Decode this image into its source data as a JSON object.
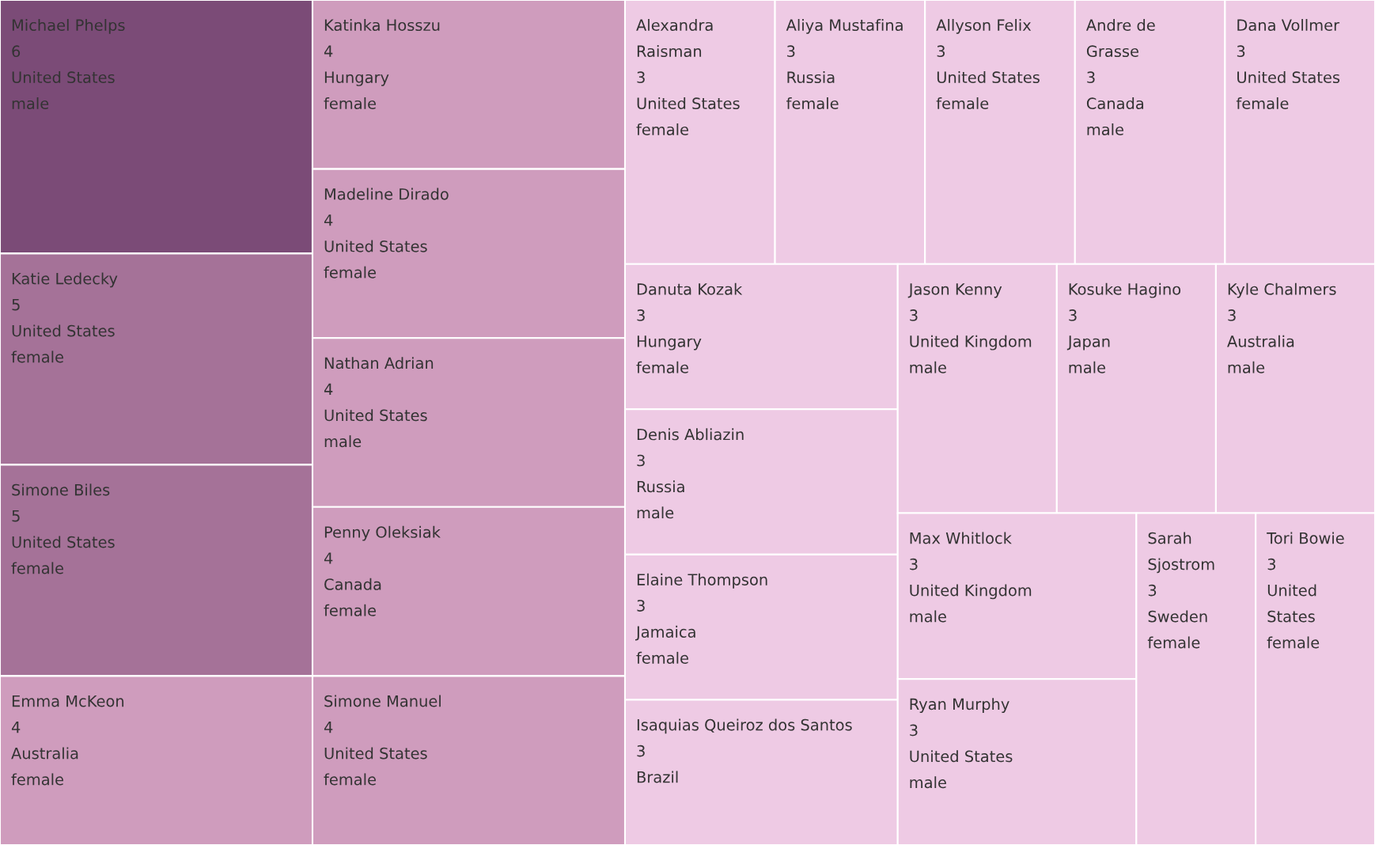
{
  "chart_data": {
    "type": "other",
    "data_labels": true,
    "categories": [
      "Michael Phelps",
      "Katie Ledecky",
      "Simone Biles",
      "Emma McKeon",
      "Katinka Hosszu",
      "Madeline Dirado",
      "Nathan Adrian",
      "Penny Oleksiak",
      "Simone Manuel",
      "Alexandra Raisman",
      "Aliya Mustafina",
      "Allyson Felix",
      "Andre de Grasse",
      "Dana Vollmer",
      "Danuta Kozak",
      "Denis Abliazin",
      "Elaine Thompson",
      "Isaquias Queiroz dos Santos",
      "Jason Kenny",
      "Kosuke Hagino",
      "Kyle Chalmers",
      "Max Whitlock",
      "Ryan Murphy",
      "Sarah Sjostrom",
      "Tori Bowie"
    ],
    "values": [
      6,
      5,
      5,
      4,
      4,
      4,
      4,
      4,
      4,
      3,
      3,
      3,
      3,
      3,
      3,
      3,
      3,
      3,
      3,
      3,
      3,
      3,
      3,
      3,
      3
    ],
    "colors": [
      "#7b4b77",
      "#a57298",
      "#a57298",
      "#cf9cbd",
      "#cf9cbd",
      "#cf9cbd",
      "#cf9cbd",
      "#cf9cbd",
      "#cf9cbd",
      "#eecae4",
      "#eecae4",
      "#eecae4",
      "#eecae4",
      "#eecae4",
      "#eecae4",
      "#eecae4",
      "#eecae4",
      "#eecae4",
      "#eecae4",
      "#eecae4",
      "#eecae4",
      "#eecae4",
      "#eecae4",
      "#eecae4",
      "#eecae4"
    ],
    "cell_labels": [
      [
        "United States",
        "male"
      ],
      [
        "United States",
        "female"
      ],
      [
        "United States",
        "female"
      ],
      [
        "Australia",
        "female"
      ],
      [
        "Hungary",
        "female"
      ],
      [
        "United States",
        "female"
      ],
      [
        "United States",
        "male"
      ],
      [
        "Canada",
        "female"
      ],
      [
        "United States",
        "female"
      ],
      [
        "United States",
        "female"
      ],
      [
        "Russia",
        "female"
      ],
      [
        "United States",
        "female"
      ],
      [
        "Canada",
        "male"
      ],
      [
        "United States",
        "female"
      ],
      [
        "Hungary",
        "female"
      ],
      [
        "Russia",
        "male"
      ],
      [
        "Jamaica",
        "female"
      ],
      [
        "Brazil"
      ],
      [
        "United Kingdom",
        "male"
      ],
      [
        "Japan",
        "male"
      ],
      [
        "Australia",
        "male"
      ],
      [
        "United Kingdom",
        "male"
      ],
      [
        "United States",
        "male"
      ],
      [
        "Sweden",
        "female"
      ],
      [
        "United States",
        "female"
      ]
    ]
  }
}
